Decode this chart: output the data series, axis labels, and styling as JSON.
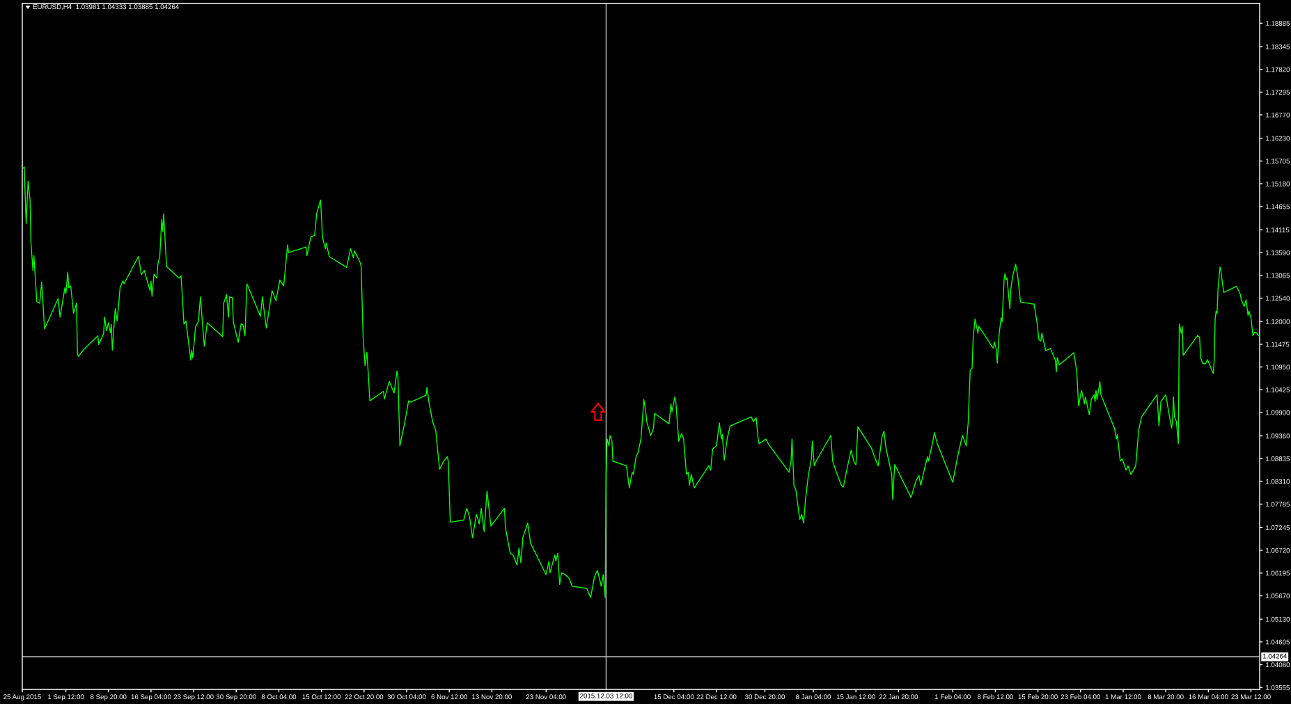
{
  "chart_data": {
    "type": "line",
    "title": "EURUSD,H4  1.03981 1.04333 1.03885 1.04264",
    "color": "#00ff00",
    "x": [
      "2015-08-25T04:00",
      "2015-08-25T08:00",
      "2015-08-25T16:00",
      "2015-08-26T00:00",
      "2015-08-26T08:00",
      "2015-08-26T12:00",
      "2015-08-26T20:00",
      "2015-08-27T00:00",
      "2015-08-27T12:00",
      "2015-08-28T00:00",
      "2015-08-28T08:00",
      "2015-08-28T20:00",
      "2015-08-31T04:00",
      "2015-08-31T12:00",
      "2015-09-01T08:00",
      "2015-09-01T12:00",
      "2015-09-01T20:00",
      "2015-09-02T00:00",
      "2015-09-02T08:00",
      "2015-09-02T20:00",
      "2015-09-03T08:00",
      "2015-09-03T12:00",
      "2015-09-03T16:00",
      "2015-09-04T12:00",
      "2015-09-07T00:00",
      "2015-09-07T04:00",
      "2015-09-08T00:00",
      "2015-09-08T04:00",
      "2015-09-08T12:00",
      "2015-09-08T20:00",
      "2015-09-09T04:00",
      "2015-09-09T08:00",
      "2015-09-09T12:00",
      "2015-09-10T00:00",
      "2015-09-10T08:00",
      "2015-09-10T20:00",
      "2015-09-11T08:00",
      "2015-09-11T12:00",
      "2015-09-14T00:00",
      "2015-09-14T12:00",
      "2015-09-15T00:00",
      "2015-09-16T00:00",
      "2015-09-16T04:00",
      "2015-09-16T08:00",
      "2015-09-16T16:00",
      "2015-09-17T04:00",
      "2015-09-17T08:00",
      "2015-09-17T16:00",
      "2015-09-18T00:00",
      "2015-09-18T04:00",
      "2015-09-18T08:00",
      "2015-09-18T20:00",
      "2015-09-21T00:00",
      "2015-09-21T08:00",
      "2015-09-21T20:00",
      "2015-09-22T04:00",
      "2015-09-23T00:00",
      "2015-09-23T04:00",
      "2015-09-23T08:00",
      "2015-09-23T20:00",
      "2015-09-24T08:00",
      "2015-09-24T16:00",
      "2015-09-25T04:00",
      "2015-09-25T08:00",
      "2015-09-25T20:00",
      "2015-09-28T12:00",
      "2015-09-28T16:00",
      "2015-09-29T04:00",
      "2015-09-29T12:00",
      "2015-09-29T16:00",
      "2015-09-30T04:00",
      "2015-09-30T08:00",
      "2015-10-01T04:00",
      "2015-10-01T16:00",
      "2015-10-02T00:00",
      "2015-10-02T08:00",
      "2015-10-02T16:00",
      "2015-10-05T00:00",
      "2015-10-05T08:00",
      "2015-10-06T00:00",
      "2015-10-07T00:00",
      "2015-10-07T16:00",
      "2015-10-08T08:00",
      "2015-10-09T00:00",
      "2015-10-09T16:00",
      "2015-10-09T20:00",
      "2015-10-12T20:00",
      "2015-10-13T00:00",
      "2015-10-13T16:00",
      "2015-10-14T08:00",
      "2015-10-14T16:00",
      "2015-10-15T08:00",
      "2015-10-15T12:00",
      "2015-10-15T16:00",
      "2015-10-16T04:00",
      "2015-10-16T08:00",
      "2015-10-16T20:00",
      "2015-10-19T20:00",
      "2015-10-20T12:00",
      "2015-10-21T00:00",
      "2015-10-21T04:00",
      "2015-10-21T16:00",
      "2015-10-22T04:00",
      "2015-10-22T08:00",
      "2015-10-22T16:00",
      "2015-10-23T00:00",
      "2015-10-23T08:00",
      "2015-10-23T20:00",
      "2015-10-26T04:00",
      "2015-10-26T08:00",
      "2015-10-27T04:00",
      "2015-10-28T00:00",
      "2015-10-28T12:00",
      "2015-10-28T16:00",
      "2015-10-29T00:00",
      "2015-10-29T20:00",
      "2015-10-30T12:00",
      "2015-10-30T20:00",
      "2015-11-02T12:00",
      "2015-11-02T16:00",
      "2015-11-03T00:00",
      "2015-11-03T16:00",
      "2015-11-04T04:00",
      "2015-11-04T20:00",
      "2015-11-05T12:00",
      "2015-11-06T04:00",
      "2015-11-06T08:00",
      "2015-11-06T16:00",
      "2015-11-09T00:00",
      "2015-11-09T12:00",
      "2015-11-10T00:00",
      "2015-11-10T12:00",
      "2015-11-11T04:00",
      "2015-11-11T16:00",
      "2015-11-12T00:00",
      "2015-11-12T12:00",
      "2015-11-13T00:00",
      "2015-11-13T16:00",
      "2015-11-16T00:00",
      "2015-11-16T04:00",
      "2015-11-17T00:00",
      "2015-11-17T12:00",
      "2015-11-18T04:00",
      "2015-11-18T12:00",
      "2015-11-18T20:00",
      "2015-11-19T04:00",
      "2015-11-20T00:00",
      "2015-11-20T12:00",
      "2015-11-23T04:00",
      "2015-11-23T16:00",
      "2015-11-23T20:00",
      "2015-11-24T16:00",
      "2015-11-24T20:00",
      "2015-11-25T04:00",
      "2015-11-25T12:00",
      "2015-11-25T20:00",
      "2015-11-26T08:00",
      "2015-11-26T20:00",
      "2015-11-27T04:00",
      "2015-11-27T16:00",
      "2015-11-30T04:00",
      "2015-11-30T20:00",
      "2015-12-01T12:00",
      "2015-12-02T00:00",
      "2015-12-02T16:00",
      "2015-12-03T00:00",
      "2015-12-03T08:00",
      "2015-12-03T12:00",
      "2015-12-03T16:00",
      "2015-12-04T00:00",
      "2015-12-04T04:00",
      "2015-12-04T12:00",
      "2015-12-04T16:00",
      "2015-12-07T00:00",
      "2015-12-07T12:00",
      "2015-12-07T20:00",
      "2015-12-08T00:00",
      "2015-12-08T04:00",
      "2015-12-08T16:00",
      "2015-12-09T00:00",
      "2015-12-09T12:00",
      "2015-12-10T00:00",
      "2015-12-10T08:00",
      "2015-12-10T12:00",
      "2015-12-11T04:00",
      "2015-12-11T16:00",
      "2015-12-11T20:00",
      "2015-12-14T08:00",
      "2015-12-14T16:00",
      "2015-12-14T20:00",
      "2015-12-15T08:00",
      "2015-12-15T12:00",
      "2015-12-16T00:00",
      "2015-12-16T12:00",
      "2015-12-16T20:00",
      "2015-12-17T08:00",
      "2015-12-17T16:00",
      "2015-12-17T20:00",
      "2015-12-18T04:00",
      "2015-12-18T16:00",
      "2015-12-21T04:00",
      "2015-12-21T12:00",
      "2015-12-21T20:00",
      "2015-12-22T12:00",
      "2015-12-23T00:00",
      "2015-12-23T08:00",
      "2015-12-23T12:00",
      "2015-12-23T20:00",
      "2015-12-24T08:00",
      "2015-12-24T20:00",
      "2015-12-28T12:00",
      "2015-12-28T20:00",
      "2015-12-29T08:00",
      "2015-12-29T16:00",
      "2015-12-29T20:00",
      "2015-12-30T12:00",
      "2015-12-31T00:00",
      "2015-12-31T12:00",
      "2016-01-04T00:00",
      "2016-01-04T08:00",
      "2016-01-04T12:00",
      "2016-01-04T20:00",
      "2016-01-05T04:00",
      "2016-01-05T20:00",
      "2016-01-06T04:00",
      "2016-01-06T12:00",
      "2016-01-06T20:00",
      "2016-01-07T08:00",
      "2016-01-07T20:00",
      "2016-01-08T00:00",
      "2016-01-08T08:00",
      "2016-01-08T16:00",
      "2016-01-11T04:00",
      "2016-01-11T12:00",
      "2016-01-12T00:00",
      "2016-01-13T00:00",
      "2016-01-13T08:00",
      "2016-01-14T00:00",
      "2016-01-14T16:00",
      "2016-01-15T04:00",
      "2016-01-15T12:00",
      "2016-01-15T20:00",
      "2016-01-18T04:00",
      "2016-01-18T20:00",
      "2016-01-19T08:00",
      "2016-01-20T00:00",
      "2016-01-20T08:00",
      "2016-01-20T16:00",
      "2016-01-21T04:00",
      "2016-01-21T16:00",
      "2016-01-21T20:00",
      "2016-01-22T04:00",
      "2016-01-25T00:00",
      "2016-01-25T20:00",
      "2016-01-26T08:00",
      "2016-01-26T16:00",
      "2016-01-27T08:00",
      "2016-01-27T20:00",
      "2016-01-28T00:00",
      "2016-01-28T20:00",
      "2016-01-29T00:00",
      "2016-01-29T12:00",
      "2016-02-01T04:00",
      "2016-02-02T00:00",
      "2016-02-02T20:00",
      "2016-02-03T12:00",
      "2016-02-03T20:00",
      "2016-02-04T04:00",
      "2016-02-04T12:00",
      "2016-02-04T16:00",
      "2016-02-05T00:00",
      "2016-02-05T12:00",
      "2016-02-05T16:00",
      "2016-02-08T04:00",
      "2016-02-08T08:00",
      "2016-02-08T16:00",
      "2016-02-08T20:00",
      "2016-02-09T04:00",
      "2016-02-09T12:00",
      "2016-02-09T16:00",
      "2016-02-10T00:00",
      "2016-02-10T04:00",
      "2016-02-10T08:00",
      "2016-02-10T12:00",
      "2016-02-11T00:00",
      "2016-02-11T04:00",
      "2016-02-11T12:00",
      "2016-02-12T00:00",
      "2016-02-12T08:00",
      "2016-02-12T20:00",
      "2016-02-15T04:00",
      "2016-02-15T16:00",
      "2016-02-16T00:00",
      "2016-02-16T08:00",
      "2016-02-16T12:00",
      "2016-02-17T04:00",
      "2016-02-18T00:00",
      "2016-02-18T20:00",
      "2016-02-19T00:00",
      "2016-02-19T04:00",
      "2016-02-19T12:00",
      "2016-02-22T00:00",
      "2016-02-22T12:00",
      "2016-02-22T20:00",
      "2016-02-23T08:00",
      "2016-02-23T20:00",
      "2016-02-24T00:00",
      "2016-02-24T16:00",
      "2016-02-25T00:00",
      "2016-02-25T12:00",
      "2016-02-25T16:00",
      "2016-02-25T20:00",
      "2016-02-26T00:00",
      "2016-02-26T12:00",
      "2016-02-26T16:00",
      "2016-02-29T00:00",
      "2016-02-29T08:00",
      "2016-02-29T12:00",
      "2016-03-01T00:00",
      "2016-03-01T08:00",
      "2016-03-02T00:00",
      "2016-03-02T08:00",
      "2016-03-02T20:00",
      "2016-03-03T16:00",
      "2016-03-04T04:00",
      "2016-03-04T16:00",
      "2016-03-07T08:00",
      "2016-03-07T16:00",
      "2016-03-08T00:00",
      "2016-03-08T20:00",
      "2016-03-09T04:00",
      "2016-03-09T20:00",
      "2016-03-10T00:00",
      "2016-03-10T04:00",
      "2016-03-10T08:00",
      "2016-03-10T16:00",
      "2016-03-11T00:00",
      "2016-03-11T04:00",
      "2016-03-11T12:00",
      "2016-03-11T16:00",
      "2016-03-11T20:00",
      "2016-03-14T08:00",
      "2016-03-14T16:00",
      "2016-03-14T20:00",
      "2016-03-15T04:00",
      "2016-03-15T16:00",
      "2016-03-16T00:00",
      "2016-03-16T12:00",
      "2016-03-17T00:00",
      "2016-03-17T04:00",
      "2016-03-17T08:00",
      "2016-03-17T12:00",
      "2016-03-17T16:00",
      "2016-03-17T20:00",
      "2016-03-18T04:00",
      "2016-03-18T08:00",
      "2016-03-18T16:00",
      "2016-03-18T20:00",
      "2016-03-21T00:00",
      "2016-03-21T16:00",
      "2016-03-21T20:00",
      "2016-03-22T08:00",
      "2016-03-22T16:00",
      "2016-03-23T00:00",
      "2016-03-23T04:00",
      "2016-03-23T12:00",
      "2016-03-23T20:00",
      "2016-03-24T04:00",
      "2016-03-24T12:00",
      "2016-03-25T00:00"
    ],
    "values": [
      1.1554,
      1.1557,
      1.1426,
      1.1524,
      1.148,
      1.1381,
      1.1318,
      1.1352,
      1.1246,
      1.1242,
      1.1291,
      1.1183,
      1.1253,
      1.121,
      1.1278,
      1.1264,
      1.1314,
      1.1278,
      1.1282,
      1.1219,
      1.1242,
      1.1125,
      1.112,
      1.1134,
      1.1167,
      1.1147,
      1.1172,
      1.121,
      1.1179,
      1.1197,
      1.1174,
      1.1194,
      1.1134,
      1.123,
      1.1201,
      1.1278,
      1.1294,
      1.1287,
      1.135,
      1.1308,
      1.1318,
      1.1271,
      1.1293,
      1.1258,
      1.1309,
      1.13,
      1.1332,
      1.135,
      1.1435,
      1.1408,
      1.1449,
      1.1327,
      1.13,
      1.1305,
      1.1194,
      1.1201,
      1.1111,
      1.1134,
      1.1116,
      1.1188,
      1.1201,
      1.1257,
      1.117,
      1.1143,
      1.1197,
      1.1165,
      1.1242,
      1.1262,
      1.121,
      1.1257,
      1.1255,
      1.1199,
      1.1152,
      1.1195,
      1.1192,
      1.1167,
      1.1287,
      1.1212,
      1.1257,
      1.1185,
      1.1271,
      1.1248,
      1.1296,
      1.1282,
      1.1377,
      1.1359,
      1.1372,
      1.1352,
      1.1395,
      1.1399,
      1.1449,
      1.148,
      1.1444,
      1.1395,
      1.1368,
      1.1381,
      1.135,
      1.1325,
      1.1368,
      1.1347,
      1.1363,
      1.135,
      1.1336,
      1.1327,
      1.1165,
      1.1098,
      1.1129,
      1.1017,
      1.1039,
      1.1021,
      1.1062,
      1.1035,
      1.1086,
      1.1071,
      1.0913,
      1.0967,
      1.1017,
      1.1014,
      1.103,
      1.1048,
      1.1014,
      1.0967,
      1.0949,
      1.0859,
      1.0877,
      1.0888,
      1.0877,
      1.0737,
      1.0742,
      1.0769,
      1.0749,
      1.0701,
      1.0755,
      1.0733,
      1.0769,
      1.0715,
      1.0809,
      1.0728,
      1.0769,
      1.0724,
      1.0665,
      1.0661,
      1.0638,
      1.0677,
      1.0643,
      1.0701,
      1.0735,
      1.0688,
      1.0616,
      1.0647,
      1.062,
      1.0661,
      1.0647,
      1.0665,
      1.0593,
      1.062,
      1.0617,
      1.0611,
      1.0607,
      1.0589,
      1.0584,
      1.0563,
      1.0611,
      1.0626,
      1.0589,
      1.0616,
      1.0563,
      1.0847,
      1.0929,
      1.0913,
      1.0937,
      1.0924,
      1.0878,
      1.0867,
      1.0816,
      1.0842,
      1.0852,
      1.0847,
      1.0888,
      1.0898,
      1.0929,
      1.102,
      1.099,
      1.0969,
      1.0937,
      1.0954,
      1.0988,
      1.0964,
      1.101,
      1.0992,
      1.1026,
      1.1015,
      1.0924,
      1.0941,
      1.0929,
      1.0847,
      1.0852,
      1.0822,
      1.0847,
      1.0816,
      1.0867,
      1.0857,
      1.0906,
      1.0913,
      1.0966,
      1.0929,
      1.0939,
      1.088,
      1.0929,
      1.0959,
      1.098,
      1.0969,
      1.0978,
      1.0929,
      1.0918,
      1.0924,
      1.0929,
      1.0916,
      1.0852,
      1.0878,
      1.0929,
      1.0822,
      1.0811,
      1.0743,
      1.0755,
      1.0735,
      1.0791,
      1.0847,
      1.0883,
      1.0924,
      1.0867,
      1.0878,
      1.0937,
      1.0878,
      1.0857,
      1.0822,
      1.0818,
      1.0862,
      1.0903,
      1.0876,
      1.0869,
      1.0957,
      1.0908,
      1.0883,
      1.0867,
      1.0934,
      1.0947,
      1.0908,
      1.0878,
      1.0847,
      1.0789,
      1.087,
      1.0794,
      1.0832,
      1.0845,
      1.0822,
      1.0862,
      1.0888,
      1.0878,
      1.0929,
      1.0944,
      1.0918,
      1.0829,
      1.0888,
      1.0937,
      1.0913,
      1.0969,
      1.1087,
      1.1092,
      1.1158,
      1.1206,
      1.1173,
      1.1189,
      1.1138,
      1.1153,
      1.1135,
      1.1104,
      1.1173,
      1.1209,
      1.1199,
      1.1296,
      1.1311,
      1.1296,
      1.1301,
      1.123,
      1.1275,
      1.1306,
      1.1332,
      1.1306,
      1.1245,
      1.124,
      1.1199,
      1.1158,
      1.1155,
      1.1173,
      1.1133,
      1.1138,
      1.111,
      1.1084,
      1.1117,
      1.11,
      1.1128,
      1.1087,
      1.1005,
      1.1041,
      1.101,
      1.1026,
      1.0985,
      1.102,
      1.1031,
      1.1015,
      1.1041,
      1.102,
      1.1061,
      1.1031,
      1.0954,
      1.0929,
      1.0939,
      1.0878,
      1.0883,
      1.0857,
      1.0867,
      1.0847,
      1.0867,
      1.0949,
      1.098,
      1.1031,
      1.0959,
      1.1015,
      1.1031,
      1.1005,
      1.0954,
      1.0969,
      1.1026,
      1.098,
      1.0969,
      1.0918,
      1.1194,
      1.1173,
      1.1189,
      1.1122,
      1.1168,
      1.1163,
      1.1117,
      1.1104,
      1.1102,
      1.1112,
      1.1097,
      1.108,
      1.1107,
      1.1204,
      1.1224,
      1.1219,
      1.1275,
      1.1326,
      1.1316,
      1.1281,
      1.1267,
      1.1281,
      1.1263,
      1.125,
      1.1235,
      1.125,
      1.1214,
      1.1224,
      1.1209,
      1.1168,
      1.1176,
      1.1173,
      1.1165
    ],
    "xlim": [
      "2015-08-25T00:00",
      "2016-03-25T00:00"
    ],
    "xticks": [
      {
        "value": "2015-08-25T00:00",
        "label": "25 Aug 2015"
      },
      {
        "value": "2015-09-01T12:00",
        "label": "1 Sep 12:00"
      },
      {
        "value": "2015-09-08T20:00",
        "label": "8 Sep 20:00"
      },
      {
        "value": "2015-09-16T04:00",
        "label": "16 Sep 04:00"
      },
      {
        "value": "2015-09-23T12:00",
        "label": "23 Sep 12:00"
      },
      {
        "value": "2015-09-30T20:00",
        "label": "30 Sep 20:00"
      },
      {
        "value": "2015-10-08T04:00",
        "label": "8 Oct 04:00"
      },
      {
        "value": "2015-10-15T12:00",
        "label": "15 Oct 12:00"
      },
      {
        "value": "2015-10-22T20:00",
        "label": "22 Oct 20:00"
      },
      {
        "value": "2015-10-30T04:00",
        "label": "30 Oct 04:00"
      },
      {
        "value": "2015-11-06T12:00",
        "label": "6 Nov 12:00"
      },
      {
        "value": "2015-11-13T20:00",
        "label": "13 Nov 20:00"
      },
      {
        "value": "2015-11-23T04:00",
        "label": "23 Nov 04:00"
      },
      {
        "value": "2015-12-15T04:00",
        "label": "15 Dec 04:00"
      },
      {
        "value": "2015-12-22T12:00",
        "label": "22 Dec 12:00"
      },
      {
        "value": "2015-12-30T20:00",
        "label": "30 Dec 20:00"
      },
      {
        "value": "2016-01-08T04:00",
        "label": "8 Jan 04:00"
      },
      {
        "value": "2016-01-15T12:00",
        "label": "15 Jan 12:00"
      },
      {
        "value": "2016-01-22T20:00",
        "label": "22 Jan 20:00"
      },
      {
        "value": "2016-02-01T04:00",
        "label": "1 Feb 04:00"
      },
      {
        "value": "2016-02-08T12:00",
        "label": "8 Feb 12:00"
      },
      {
        "value": "2016-02-15T20:00",
        "label": "15 Feb 20:00"
      },
      {
        "value": "2016-02-23T04:00",
        "label": "23 Feb 04:00"
      },
      {
        "value": "2016-03-01T12:00",
        "label": "1 Mar 12:00"
      },
      {
        "value": "2016-03-08T20:00",
        "label": "8 Mar 20:00"
      },
      {
        "value": "2016-03-16T04:00",
        "label": "16 Mar 04:00"
      },
      {
        "value": "2016-03-23T12:00",
        "label": "23 Mar 12:00"
      }
    ],
    "ylim": [
      1.0351,
      1.1934
    ],
    "yticks": [
      1.18885,
      1.18345,
      {
        "value": 1.1782,
        "label": "1.17820"
      },
      1.17295,
      {
        "value": 1.1677,
        "label": "1.16770"
      },
      {
        "value": 1.1623,
        "label": "1.16230"
      },
      1.15705,
      {
        "value": 1.1518,
        "label": "1.15180"
      },
      1.14655,
      1.14115,
      {
        "value": 1.1359,
        "label": "1.13590"
      },
      1.13065,
      {
        "value": 1.1254,
        "label": "1.12540"
      },
      {
        "value": 1.12,
        "label": "1.12000"
      },
      1.11475,
      {
        "value": 1.1095,
        "label": "1.10950"
      },
      1.10425,
      {
        "value": 1.099,
        "label": "1.09900"
      },
      {
        "value": 1.0936,
        "label": "1.09360"
      },
      1.08835,
      {
        "value": 1.0831,
        "label": "1.08310"
      },
      1.07785,
      1.07245,
      {
        "value": 1.0672,
        "label": "1.06720"
      },
      1.06195,
      {
        "value": 1.0567,
        "label": "1.05670"
      },
      {
        "value": 1.0513,
        "label": "1.05130"
      },
      1.04605,
      {
        "value": 1.0408,
        "label": "1.04080"
      },
      1.03555
    ],
    "ref_lines": [
      {
        "axis": "y",
        "value": 1.04264,
        "label": "1.04264",
        "color": "#c0c0c0"
      },
      {
        "axis": "x",
        "value": "2015-12-03T12:00",
        "label": "2015.12.03 12:00",
        "color": "#c0c0c0"
      }
    ]
  }
}
